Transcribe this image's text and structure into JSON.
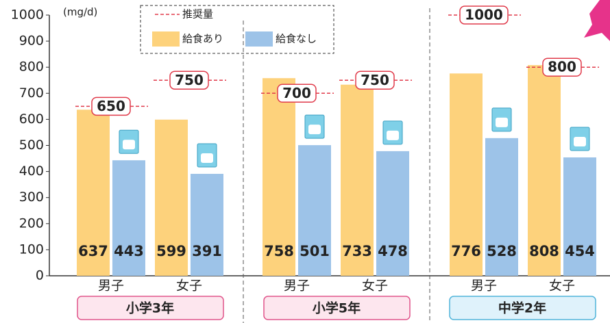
{
  "chart_data": {
    "type": "bar",
    "y_unit": "(mg/d)",
    "categories": [
      "男子",
      "女子",
      "男子",
      "女子",
      "男子",
      "女子"
    ],
    "groups": [
      "小学3年",
      "小学5年",
      "中学2年"
    ],
    "series": [
      {
        "name": "給食あり",
        "color": "#fdd27c",
        "values": [
          637,
          599,
          758,
          733,
          776,
          808
        ]
      },
      {
        "name": "給食なし",
        "color": "#9dc3e8",
        "values": [
          443,
          391,
          501,
          478,
          528,
          454
        ]
      }
    ],
    "reference": {
      "name": "推奨量",
      "color": "#e03a4a",
      "values": [
        650,
        750,
        700,
        750,
        1000,
        800
      ]
    },
    "ylim": [
      0,
      1000
    ],
    "yticks": [
      0,
      100,
      200,
      300,
      400,
      500,
      600,
      700,
      800,
      900,
      1000
    ]
  }
}
